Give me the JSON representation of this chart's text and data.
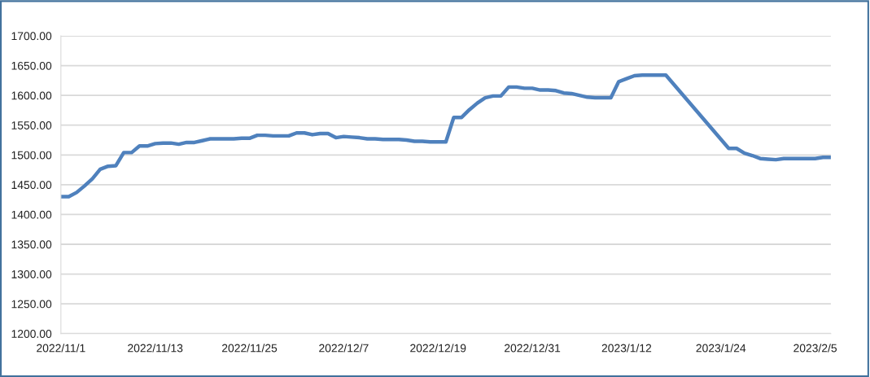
{
  "chart_data": {
    "type": "line",
    "x": [
      "2022-11-01",
      "2022-11-02",
      "2022-11-03",
      "2022-11-04",
      "2022-11-05",
      "2022-11-06",
      "2022-11-07",
      "2022-11-08",
      "2022-11-09",
      "2022-11-10",
      "2022-11-11",
      "2022-11-12",
      "2022-11-13",
      "2022-11-14",
      "2022-11-15",
      "2022-11-16",
      "2022-11-17",
      "2022-11-18",
      "2022-11-19",
      "2022-11-20",
      "2022-11-21",
      "2022-11-22",
      "2022-11-23",
      "2022-11-24",
      "2022-11-25",
      "2022-11-26",
      "2022-11-27",
      "2022-11-28",
      "2022-11-29",
      "2022-11-30",
      "2022-12-01",
      "2022-12-02",
      "2022-12-03",
      "2022-12-04",
      "2022-12-05",
      "2022-12-06",
      "2022-12-07",
      "2022-12-08",
      "2022-12-09",
      "2022-12-10",
      "2022-12-11",
      "2022-12-12",
      "2022-12-13",
      "2022-12-14",
      "2022-12-15",
      "2022-12-16",
      "2022-12-17",
      "2022-12-18",
      "2022-12-19",
      "2022-12-20",
      "2022-12-21",
      "2022-12-22",
      "2022-12-23",
      "2022-12-24",
      "2022-12-25",
      "2022-12-26",
      "2022-12-27",
      "2022-12-28",
      "2022-12-29",
      "2022-12-30",
      "2022-12-31",
      "2023-01-01",
      "2023-01-02",
      "2023-01-03",
      "2023-01-04",
      "2023-01-05",
      "2023-01-06",
      "2023-01-07",
      "2023-01-08",
      "2023-01-09",
      "2023-01-10",
      "2023-01-11",
      "2023-01-12",
      "2023-01-13",
      "2023-01-14",
      "2023-01-15",
      "2023-01-16",
      "2023-01-17",
      "2023-01-25",
      "2023-01-26",
      "2023-01-27",
      "2023-01-28",
      "2023-01-29",
      "2023-01-30",
      "2023-01-31",
      "2023-02-01",
      "2023-02-02",
      "2023-02-03",
      "2023-02-04",
      "2023-02-05",
      "2023-02-06",
      "2023-02-07"
    ],
    "series": [
      {
        "color": "#4f81bd",
        "values": [
          1430,
          1430,
          1437,
          1448,
          1460,
          1476,
          1481,
          1482,
          1504,
          1504,
          1515,
          1515,
          1519,
          1520,
          1520,
          1518,
          1521,
          1521,
          1524,
          1527,
          1527,
          1527,
          1527,
          1528,
          1528,
          1533,
          1533,
          1532,
          1532,
          1532,
          1537,
          1537,
          1534,
          1536,
          1536,
          1529,
          1531,
          1530,
          1529,
          1527,
          1527,
          1526,
          1526,
          1526,
          1525,
          1523,
          1523,
          1522,
          1522,
          1522,
          1563,
          1563,
          1576,
          1587,
          1596,
          1599,
          1599,
          1614,
          1614,
          1612,
          1612,
          1609,
          1609,
          1608,
          1604,
          1603,
          1600,
          1597,
          1596,
          1596,
          1596,
          1623,
          1628,
          1633,
          1634,
          1634,
          1634,
          1634,
          1511,
          1511,
          1503,
          1499,
          1494,
          1493,
          1492,
          1494,
          1494,
          1494,
          1494,
          1494,
          1496,
          1496
        ]
      }
    ],
    "xlim": [
      "2022-11-01",
      "2023-02-07"
    ],
    "xticks": [
      {
        "value": "2022-11-01",
        "label": "2022/11/1"
      },
      {
        "value": "2022-11-13",
        "label": "2022/11/13"
      },
      {
        "value": "2022-11-25",
        "label": "2022/11/25"
      },
      {
        "value": "2022-12-07",
        "label": "2022/12/7"
      },
      {
        "value": "2022-12-19",
        "label": "2022/12/19"
      },
      {
        "value": "2022-12-31",
        "label": "2022/12/31"
      },
      {
        "value": "2023-01-12",
        "label": "2023/1/12"
      },
      {
        "value": "2023-01-24",
        "label": "2023/1/24"
      },
      {
        "value": "2023-02-05",
        "label": "2023/2/5"
      }
    ],
    "ylim": [
      1200,
      1700
    ],
    "yticks": [
      {
        "value": 1200,
        "label": "1200.00"
      },
      {
        "value": 1250,
        "label": "1250.00"
      },
      {
        "value": 1300,
        "label": "1300.00"
      },
      {
        "value": 1350,
        "label": "1350.00"
      },
      {
        "value": 1400,
        "label": "1400.00"
      },
      {
        "value": 1450,
        "label": "1450.00"
      },
      {
        "value": 1500,
        "label": "1500.00"
      },
      {
        "value": 1550,
        "label": "1550.00"
      },
      {
        "value": 1600,
        "label": "1600.00"
      },
      {
        "value": 1650,
        "label": "1650.00"
      },
      {
        "value": 1700,
        "label": "1700.00"
      }
    ],
    "grid": "y",
    "marker": "none",
    "line_style": "solid"
  }
}
